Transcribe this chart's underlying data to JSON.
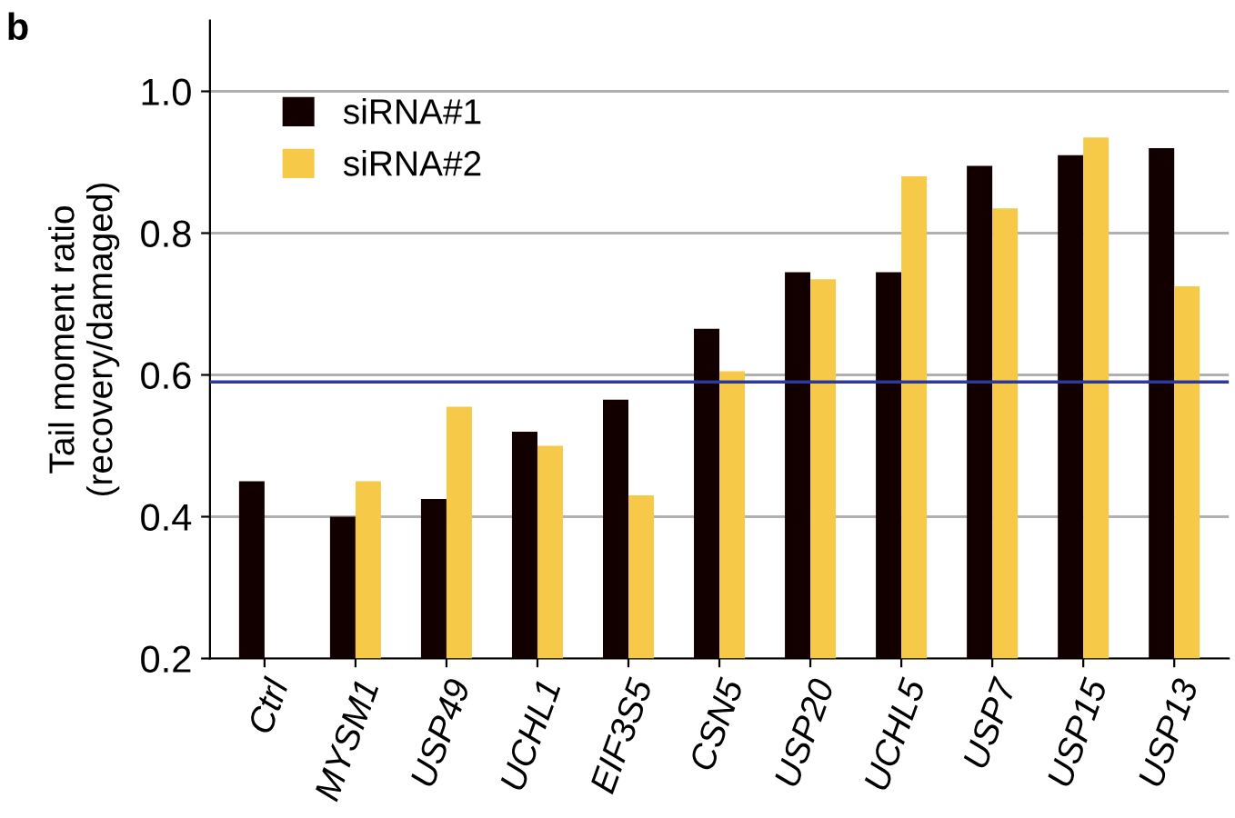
{
  "chart_data": {
    "type": "bar",
    "ylabel": "Tail moment ratio\n(recovery/damaged)",
    "categories": [
      "Ctrl",
      "MYSM1",
      "USP49",
      "UCHL1",
      "EIF3S5",
      "CSN5",
      "USP20",
      "UCHL5",
      "USP7",
      "USP15",
      "USP13"
    ],
    "series": [
      {
        "name": "siRNA#1",
        "color": "#120000",
        "values": [
          0.45,
          0.4,
          0.425,
          0.52,
          0.565,
          0.665,
          0.745,
          0.745,
          0.895,
          0.91,
          0.92
        ]
      },
      {
        "name": "siRNA#2",
        "color": "#f7c948",
        "values": [
          null,
          0.45,
          0.555,
          0.5,
          0.43,
          0.605,
          0.735,
          0.88,
          0.835,
          0.935,
          0.725
        ]
      }
    ],
    "ylim": [
      0.2,
      1.1
    ],
    "yticks": [
      0.2,
      0.4,
      0.6,
      0.8,
      {
        "value": 1,
        "label": "1.0"
      }
    ],
    "grid": "y",
    "legend": "top left",
    "ref_lines": [
      {
        "axis": "y",
        "value": 0.59,
        "color": "#2b3a9a"
      }
    ],
    "annotations": [
      "b"
    ]
  }
}
